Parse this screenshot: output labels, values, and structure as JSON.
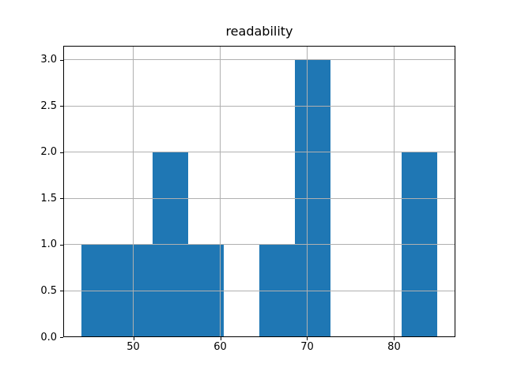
{
  "chart_data": {
    "type": "bar",
    "subtype": "histogram",
    "title": "readability",
    "xlabel": "",
    "ylabel": "",
    "bin_edges": [
      44.0,
      48.1,
      52.2,
      56.3,
      60.4,
      64.5,
      68.6,
      72.7,
      76.8,
      80.9,
      85.0
    ],
    "counts": [
      1,
      1,
      2,
      1,
      0,
      1,
      3,
      0,
      0,
      2
    ],
    "xlim": [
      41.95,
      87.05
    ],
    "ylim": [
      0,
      3.15
    ],
    "xticks": {
      "values": [
        50,
        60,
        70,
        80
      ],
      "labels": [
        "50",
        "60",
        "70",
        "80"
      ]
    },
    "yticks": {
      "values": [
        0.0,
        0.5,
        1.0,
        1.5,
        2.0,
        2.5,
        3.0
      ],
      "labels": [
        "0.0",
        "0.5",
        "1.0",
        "1.5",
        "2.0",
        "2.5",
        "3.0"
      ]
    },
    "grid": true,
    "grid_above_bars": true,
    "legend": null,
    "colors": {
      "bar": "#1f77b4",
      "grid": "#b0b0b0",
      "spine": "#000000",
      "text": "#000000",
      "background": "#ffffff"
    }
  }
}
